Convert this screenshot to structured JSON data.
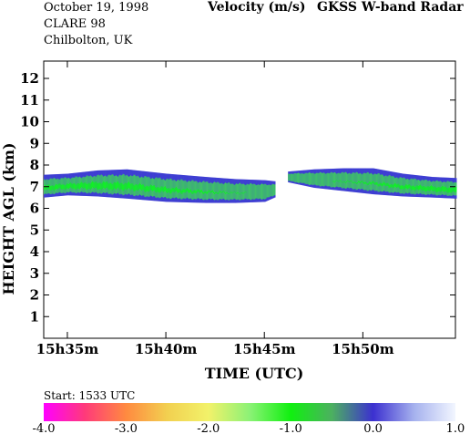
{
  "header": {
    "date": "October  19, 1998",
    "campaign": "CLARE 98",
    "location": "Chilbolton, UK",
    "title": "Velocity (m/s)",
    "instrument": "GKSS  W-band Radar"
  },
  "start_label": "Start: 1533 UTC",
  "colors": {
    "band_outer": "#3f3fd2",
    "band_mid": "#3fbf6a",
    "band_core": "#12ef26",
    "cb_stops": [
      "#ff00ff",
      "#ff3a7a",
      "#ff8a40",
      "#f2d050",
      "#f2f26a",
      "#8cf276",
      "#10f010",
      "#4cb060",
      "#3c30d0",
      "#a6b2ee",
      "#f2f6ff"
    ]
  },
  "chart_data": {
    "type": "heatmap",
    "title": "Velocity (m/s)",
    "xlabel": "TIME (UTC)",
    "ylabel": "HEIGHT AGL (km)",
    "x_start_min": 33.8,
    "x_end_min": 54.7,
    "xlim": [
      33.8,
      54.7
    ],
    "ylim": [
      0,
      12.8
    ],
    "x_ticks": [
      {
        "value": 35,
        "label": "15h35m"
      },
      {
        "value": 40,
        "label": "15h40m"
      },
      {
        "value": 45,
        "label": "15h45m"
      },
      {
        "value": 50,
        "label": "15h50m"
      }
    ],
    "y_ticks": [
      {
        "value": 1,
        "label": "1"
      },
      {
        "value": 2,
        "label": "2"
      },
      {
        "value": 3,
        "label": "3"
      },
      {
        "value": 4,
        "label": "4"
      },
      {
        "value": 5,
        "label": "5"
      },
      {
        "value": 6,
        "label": "6"
      },
      {
        "value": 7,
        "label": "7"
      },
      {
        "value": 8,
        "label": "8"
      },
      {
        "value": 9,
        "label": "9"
      },
      {
        "value": 10,
        "label": "10"
      },
      {
        "value": 11,
        "label": "11"
      },
      {
        "value": 12,
        "label": "12"
      }
    ],
    "colorbar": {
      "min": -4.0,
      "max": 1.0,
      "ticks": [
        {
          "value": -4.0,
          "label": "-4.0"
        },
        {
          "value": -3.0,
          "label": "-3.0"
        },
        {
          "value": -2.0,
          "label": "-2.0"
        },
        {
          "value": -1.0,
          "label": "-1.0"
        },
        {
          "value": 0.0,
          "label": "0.0"
        },
        {
          "value": 1.0,
          "label": "1.0"
        }
      ]
    },
    "cloud_layers": [
      {
        "name": "",
        "time_min": [
          33.8,
          35.0,
          36.5,
          38.0,
          40.0,
          42.0,
          43.5,
          45.0,
          45.5
        ],
        "base_km": [
          6.5,
          6.6,
          6.55,
          6.45,
          6.3,
          6.25,
          6.25,
          6.3,
          6.5
        ],
        "top_km": [
          7.55,
          7.6,
          7.75,
          7.8,
          7.6,
          7.45,
          7.35,
          7.3,
          7.25
        ],
        "velocity_ms": [
          -0.8,
          -0.85,
          -0.9,
          -0.85,
          -0.75,
          -0.6,
          -0.5,
          -0.4,
          -0.3
        ]
      },
      {
        "name": "",
        "time_min": [
          46.2,
          47.5,
          49.0,
          50.5,
          52.0,
          53.5,
          54.7
        ],
        "base_km": [
          7.2,
          6.95,
          6.8,
          6.65,
          6.55,
          6.5,
          6.45
        ],
        "top_km": [
          7.7,
          7.8,
          7.85,
          7.85,
          7.6,
          7.45,
          7.4
        ],
        "velocity_ms": [
          -0.3,
          -0.4,
          -0.5,
          -0.6,
          -0.75,
          -0.85,
          -0.9
        ]
      }
    ]
  }
}
